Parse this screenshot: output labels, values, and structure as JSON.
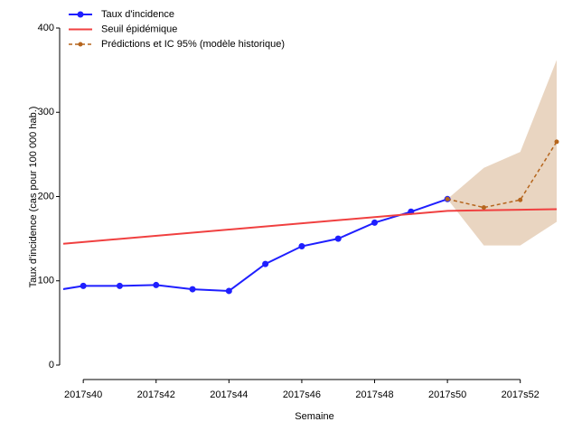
{
  "chart_data": {
    "type": "line",
    "x_label": "Semaine",
    "y_label": "Taux d'incidence (cas pour 100 000 hab.)",
    "xlim": [
      39.45,
      53
    ],
    "ylim": [
      0,
      400
    ],
    "xticks": [
      {
        "value": 40,
        "label": "2017s40"
      },
      {
        "value": 42,
        "label": "2017s42"
      },
      {
        "value": 44,
        "label": "2017s44"
      },
      {
        "value": 46,
        "label": "2017s46"
      },
      {
        "value": 48,
        "label": "2017s48"
      },
      {
        "value": 50,
        "label": "2017s50"
      },
      {
        "value": 52,
        "label": "2017s52"
      }
    ],
    "yticks": [
      0,
      100,
      200,
      300,
      400
    ],
    "series": [
      {
        "name": "Taux d'incidence",
        "color": "#1f1fff",
        "style": "solid",
        "markers": true,
        "x": [
          39,
          40,
          41,
          42,
          43,
          44,
          45,
          46,
          47,
          48,
          49,
          50
        ],
        "values": [
          87,
          94,
          94,
          95,
          90,
          88,
          120,
          141,
          150,
          169,
          182,
          197
        ]
      },
      {
        "name": "Seuil épidémique",
        "color": "#f04040",
        "style": "solid",
        "markers": false,
        "x": [
          39.45,
          50,
          53
        ],
        "values": [
          144,
          183,
          185
        ]
      },
      {
        "name": "Prédictions et IC 95% (modèle historique)",
        "color": "#b5651d",
        "style": "dashed",
        "markers": true,
        "band_color": "#e3cbb2",
        "x": [
          50,
          51,
          52,
          53
        ],
        "values": [
          197,
          187,
          196,
          265
        ],
        "lower": [
          197,
          142,
          142,
          170
        ],
        "upper": [
          197,
          234,
          253,
          362
        ]
      }
    ]
  }
}
